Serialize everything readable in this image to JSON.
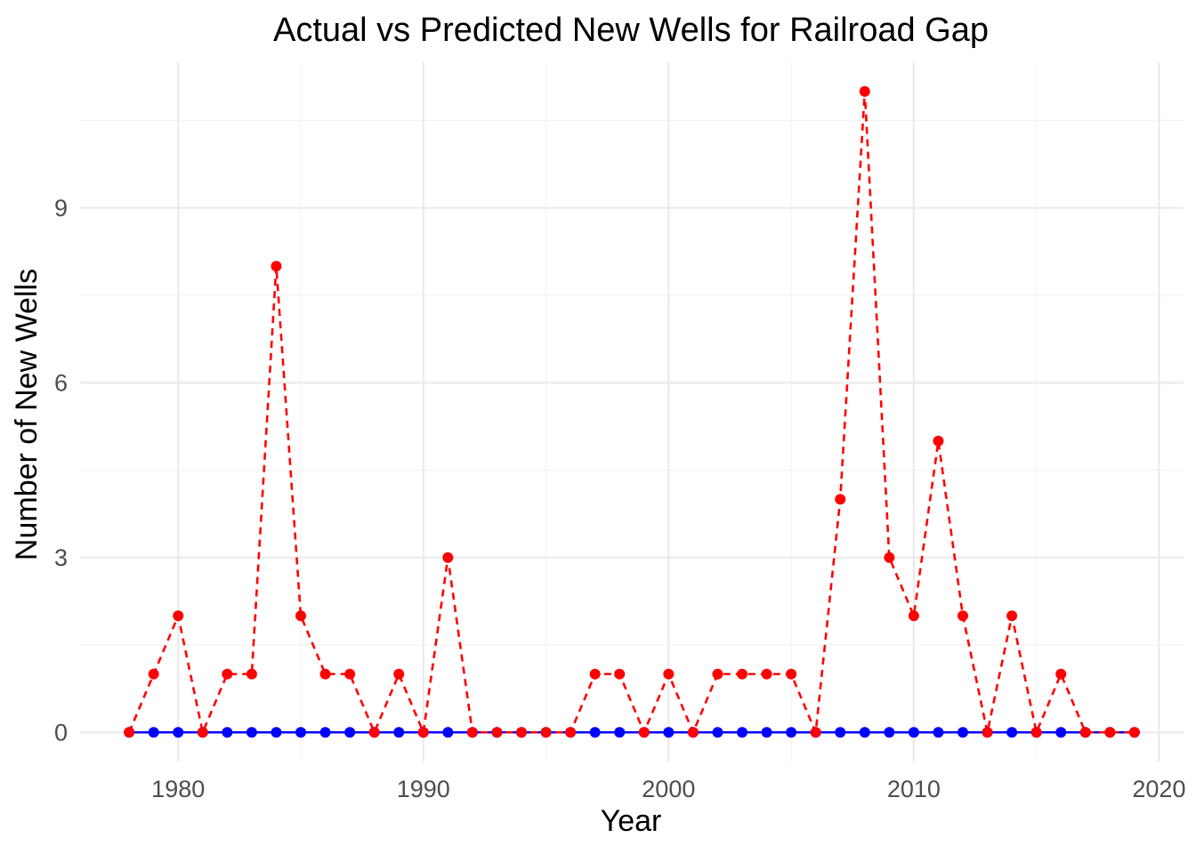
{
  "chart_data": {
    "type": "line",
    "title": "Actual vs Predicted New Wells for Railroad Gap",
    "xlabel": "Year",
    "ylabel": "Number of New Wells",
    "xlim": [
      1976,
      2021
    ],
    "ylim": [
      -0.5,
      11.5
    ],
    "x_ticks": [
      1980,
      1990,
      2000,
      2010,
      2020
    ],
    "y_ticks": [
      0,
      3,
      6,
      9
    ],
    "grid": true,
    "x": [
      1978,
      1979,
      1980,
      1981,
      1982,
      1983,
      1984,
      1985,
      1986,
      1987,
      1988,
      1989,
      1990,
      1991,
      1992,
      1993,
      1994,
      1995,
      1996,
      1997,
      1998,
      1999,
      2000,
      2001,
      2002,
      2003,
      2004,
      2005,
      2006,
      2007,
      2008,
      2009,
      2010,
      2011,
      2012,
      2013,
      2014,
      2015,
      2016,
      2017,
      2018,
      2019
    ],
    "series": [
      {
        "color": "#0000ff",
        "line_style": "solid",
        "values": [
          0,
          0,
          0,
          0,
          0,
          0,
          0,
          0,
          0,
          0,
          0,
          0,
          0,
          0,
          0,
          0,
          0,
          0,
          0,
          0,
          0,
          0,
          0,
          0,
          0,
          0,
          0,
          0,
          0,
          0,
          0,
          0,
          0,
          0,
          0,
          0,
          0,
          0,
          0,
          0,
          0,
          0
        ]
      },
      {
        "color": "#ff0000",
        "line_style": "dashed",
        "values": [
          0,
          1,
          2,
          0,
          1,
          1,
          8,
          2,
          1,
          1,
          0,
          1,
          0,
          3,
          0,
          0,
          0,
          0,
          0,
          1,
          1,
          0,
          1,
          0,
          1,
          1,
          1,
          1,
          0,
          4,
          11,
          3,
          2,
          5,
          2,
          0,
          2,
          0,
          1,
          0,
          0,
          0
        ]
      }
    ]
  }
}
